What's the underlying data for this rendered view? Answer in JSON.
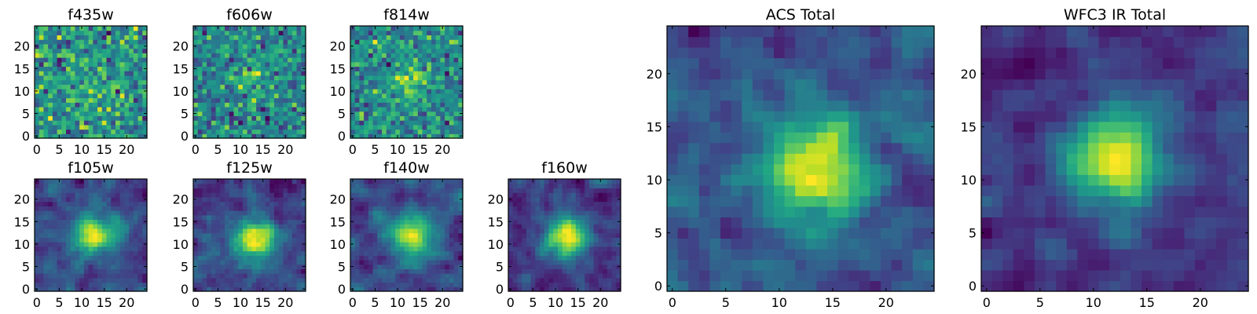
{
  "figure": {
    "description_free": true
  },
  "chart_data": [
    {
      "type": "heatmap",
      "title": "f435w",
      "size": 25,
      "xticks": [
        0,
        5,
        10,
        15,
        20
      ],
      "yticks": [
        0,
        5,
        10,
        15,
        20
      ],
      "xlim": [
        -0.5,
        24.5
      ],
      "ylim": [
        -0.5,
        24.5
      ],
      "colormap": "viridis",
      "source_center": [
        12,
        11
      ],
      "source_strength": 0.15,
      "noise": 0.55,
      "seed": 11
    },
    {
      "type": "heatmap",
      "title": "f606w",
      "size": 25,
      "xticks": [
        0,
        5,
        10,
        15,
        20
      ],
      "yticks": [
        0,
        5,
        10,
        15,
        20
      ],
      "xlim": [
        -0.5,
        24.5
      ],
      "ylim": [
        -0.5,
        24.5
      ],
      "colormap": "viridis",
      "source_center": [
        13,
        12
      ],
      "source_strength": 0.25,
      "noise": 0.5,
      "seed": 22
    },
    {
      "type": "heatmap",
      "title": "f814w",
      "size": 25,
      "xticks": [
        0,
        5,
        10,
        15,
        20
      ],
      "yticks": [
        0,
        5,
        10,
        15,
        20
      ],
      "xlim": [
        -0.5,
        24.5
      ],
      "ylim": [
        -0.5,
        24.5
      ],
      "colormap": "viridis",
      "source_center": [
        13,
        12
      ],
      "source_strength": 0.35,
      "noise": 0.45,
      "seed": 33
    },
    {
      "type": "heatmap",
      "title": "f105w",
      "size": 25,
      "xticks": [
        0,
        5,
        10,
        15,
        20
      ],
      "yticks": [
        0,
        5,
        10,
        15,
        20
      ],
      "xlim": [
        -0.5,
        24.5
      ],
      "ylim": [
        -0.5,
        24.5
      ],
      "colormap": "viridis",
      "source_center": [
        13,
        12
      ],
      "source_strength": 0.45,
      "noise": 0.32,
      "seed": 44
    },
    {
      "type": "heatmap",
      "title": "f125w",
      "size": 25,
      "xticks": [
        0,
        5,
        10,
        15,
        20
      ],
      "yticks": [
        0,
        5,
        10,
        15,
        20
      ],
      "xlim": [
        -0.5,
        24.5
      ],
      "ylim": [
        -0.5,
        24.5
      ],
      "colormap": "viridis",
      "source_center": [
        13,
        11
      ],
      "source_strength": 0.45,
      "noise": 0.3,
      "seed": 55
    },
    {
      "type": "heatmap",
      "title": "f140w",
      "size": 25,
      "xticks": [
        0,
        5,
        10,
        15,
        20
      ],
      "yticks": [
        0,
        5,
        10,
        15,
        20
      ],
      "xlim": [
        -0.5,
        24.5
      ],
      "ylim": [
        -0.5,
        24.5
      ],
      "colormap": "viridis",
      "source_center": [
        13,
        12
      ],
      "source_strength": 0.5,
      "noise": 0.32,
      "seed": 66
    },
    {
      "type": "heatmap",
      "title": "f160w",
      "size": 25,
      "xticks": [
        0,
        5,
        10,
        15,
        20
      ],
      "yticks": [
        0,
        5,
        10,
        15,
        20
      ],
      "xlim": [
        -0.5,
        24.5
      ],
      "ylim": [
        -0.5,
        24.5
      ],
      "colormap": "viridis",
      "source_center": [
        13,
        12
      ],
      "source_strength": 0.55,
      "noise": 0.32,
      "seed": 77
    },
    {
      "type": "heatmap",
      "title": "ACS Total",
      "size": 25,
      "xticks": [
        0,
        5,
        10,
        15,
        20
      ],
      "yticks": [
        0,
        5,
        10,
        15,
        20
      ],
      "xlim": [
        -0.5,
        24.5
      ],
      "ylim": [
        -0.5,
        24.5
      ],
      "colormap": "viridis",
      "source_center": [
        13,
        11
      ],
      "source_strength": 0.45,
      "noise": 0.35,
      "seed": 88
    },
    {
      "type": "heatmap",
      "title": "WFC3 IR Total",
      "size": 25,
      "xticks": [
        0,
        5,
        10,
        15,
        20
      ],
      "yticks": [
        0,
        5,
        10,
        15,
        20
      ],
      "xlim": [
        -0.5,
        24.5
      ],
      "ylim": [
        -0.5,
        24.5
      ],
      "colormap": "viridis",
      "source_center": [
        12,
        12
      ],
      "source_strength": 0.6,
      "noise": 0.28,
      "seed": 99
    }
  ]
}
